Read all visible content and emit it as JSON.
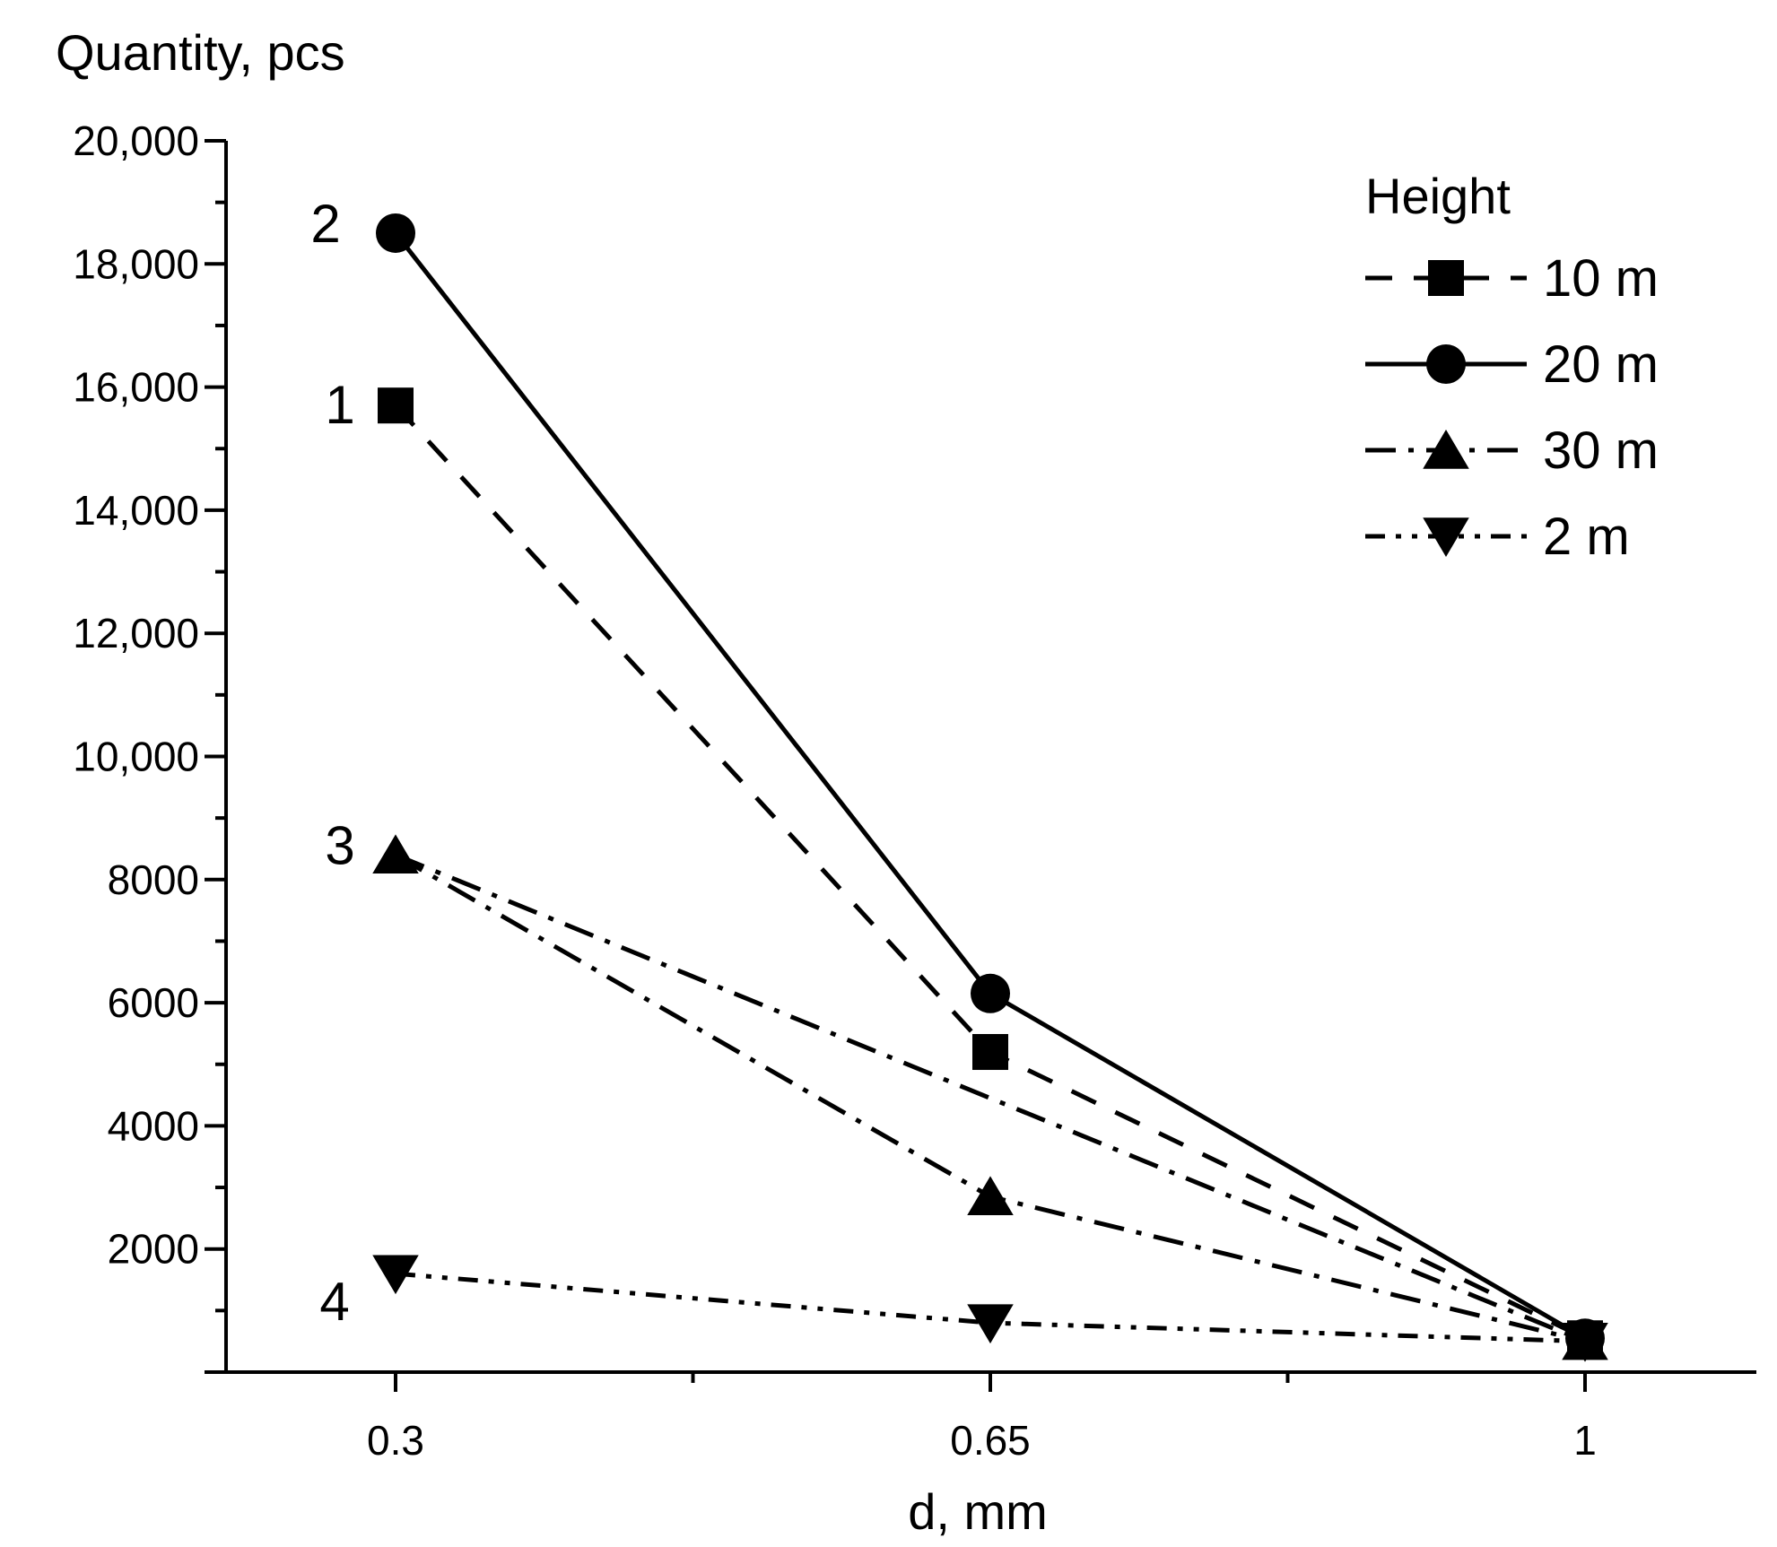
{
  "chart_data": {
    "type": "line",
    "ylabel": "Quantity, pcs",
    "xlabel": "d, mm",
    "x": [
      0.3,
      0.65,
      1
    ],
    "x_tick_labels": [
      "0.3",
      "0.65",
      "1"
    ],
    "ylim": [
      0,
      20000
    ],
    "y_ticks": [
      2000,
      4000,
      6000,
      8000,
      10000,
      12000,
      14000,
      16000,
      18000,
      20000
    ],
    "y_tick_labels": [
      "2000",
      "4000",
      "6000",
      "8000",
      "10,000",
      "12,000",
      "14,000",
      "16,000",
      "18,000",
      "20,000"
    ],
    "legend": {
      "title": "Height",
      "placement": "top-right"
    },
    "series": [
      {
        "name": "10 m",
        "curve_label": "1",
        "marker": "square",
        "dash": "dashed",
        "values": [
          15700,
          5200,
          550
        ]
      },
      {
        "name": "20 m",
        "curve_label": "2",
        "marker": "circle",
        "dash": "solid",
        "values": [
          18500,
          6150,
          550
        ]
      },
      {
        "name": "30 m",
        "curve_label": "3",
        "marker": "triangle-up",
        "dash": "dash-dot",
        "values": [
          8400,
          2850,
          500
        ]
      },
      {
        "name": "2 m",
        "curve_label": "4",
        "marker": "triangle-down",
        "dash": "dash-dot-dot",
        "values": [
          1600,
          800,
          500
        ]
      }
    ],
    "annotations": [
      {
        "text": "",
        "type": "line",
        "from": {
          "x": 0.3,
          "y": 8400
        },
        "to": {
          "x": 1,
          "y": 500
        },
        "dash": "dash-dot",
        "note": "extra dash-dot line from 30 m start point to 1 mm"
      }
    ]
  }
}
